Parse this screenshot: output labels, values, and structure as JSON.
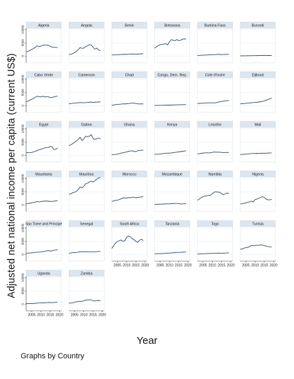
{
  "chart_data": {
    "type": "line",
    "ylabel": "Adjusted net national income per capita (current US$)",
    "xlabel": "Year",
    "note": "Graphs by Country",
    "x": [
      2002,
      2003,
      2004,
      2005,
      2006,
      2007,
      2008,
      2009,
      2010,
      2011,
      2012,
      2013,
      2014,
      2015,
      2016,
      2017,
      2018,
      2019
    ],
    "xlim": [
      2002,
      2021
    ],
    "xticks": [
      "2005",
      "2010",
      "2015",
      "2020"
    ],
    "ylim": [
      -2500,
      10500
    ],
    "yticks": [
      "0",
      "5000",
      "10000"
    ],
    "series_color": "#2f4a6b",
    "panel_header_color": "#dde6ee",
    "series": [
      {
        "name": "Algeria",
        "values": [
          1600,
          1800,
          2100,
          2500,
          2900,
          3300,
          3900,
          3500,
          3800,
          4100,
          4200,
          4200,
          4100,
          3700,
          3400,
          3300,
          3300,
          3200
        ]
      },
      {
        "name": "Angola",
        "values": [
          600,
          700,
          900,
          1300,
          1800,
          2400,
          3200,
          2900,
          3000,
          3500,
          3900,
          4300,
          4200,
          3400,
          2600,
          3000,
          2300,
          2000
        ]
      },
      {
        "name": "Benin",
        "values": [
          400,
          450,
          480,
          500,
          550,
          600,
          650,
          650,
          650,
          700,
          700,
          750,
          800,
          700,
          750,
          800,
          850,
          900
        ]
      },
      {
        "name": "Botswana",
        "values": [
          3000,
          3500,
          4000,
          4300,
          4400,
          4500,
          4700,
          4200,
          5400,
          6200,
          6000,
          5800,
          6200,
          5900,
          6000,
          6300,
          6500,
          6400
        ]
      },
      {
        "name": "Burkina Faso",
        "values": [
          250,
          280,
          320,
          350,
          380,
          420,
          480,
          480,
          500,
          550,
          600,
          650,
          650,
          550,
          600,
          620,
          650,
          700
        ]
      },
      {
        "name": "Burundi",
        "values": [
          100,
          100,
          110,
          120,
          130,
          140,
          160,
          170,
          190,
          200,
          220,
          230,
          250,
          260,
          240,
          230,
          230,
          220
        ]
      },
      {
        "name": "Cabo Verde",
        "values": [
          1500,
          1700,
          2100,
          2400,
          2800,
          3200,
          3600,
          3400,
          3300,
          3600,
          3300,
          3400,
          3400,
          3000,
          3100,
          3300,
          3500,
          3600
        ]
      },
      {
        "name": "Cameroon",
        "values": [
          700,
          800,
          900,
          950,
          1000,
          1100,
          1200,
          1150,
          1100,
          1200,
          1200,
          1300,
          1400,
          1250,
          1300,
          1350,
          1400,
          1450
        ]
      },
      {
        "name": "Chad",
        "values": [
          200,
          250,
          400,
          500,
          550,
          600,
          700,
          650,
          750,
          800,
          900,
          950,
          1000,
          800,
          700,
          650,
          700,
          650
        ]
      },
      {
        "name": "Congo, Dem. Rep.",
        "values": [
          100,
          110,
          120,
          140,
          160,
          180,
          210,
          200,
          230,
          260,
          290,
          320,
          350,
          370,
          380,
          390,
          420,
          450
        ]
      },
      {
        "name": "Cote d'Ivoire",
        "values": [
          800,
          850,
          900,
          950,
          950,
          1000,
          1100,
          1100,
          1100,
          1050,
          1150,
          1300,
          1500,
          1550,
          1700,
          1800,
          1900,
          1950
        ]
      },
      {
        "name": "Djibouti",
        "values": [
          700,
          750,
          800,
          900,
          950,
          1000,
          1100,
          1200,
          1250,
          1300,
          1400,
          1500,
          1600,
          1800,
          2100,
          2300,
          2600,
          2900
        ]
      },
      {
        "name": "Egypt",
        "values": [
          1100,
          1000,
          950,
          1100,
          1300,
          1500,
          1800,
          2100,
          2300,
          2500,
          2800,
          2900,
          3000,
          3300,
          3200,
          2200,
          2300,
          2800
        ]
      },
      {
        "name": "Gabon",
        "values": [
          3600,
          4000,
          4400,
          4900,
          5400,
          6000,
          6800,
          5600,
          6200,
          7200,
          7000,
          7200,
          7800,
          6400,
          6000,
          6200,
          6500,
          6200
        ]
      },
      {
        "name": "Ghana",
        "values": [
          250,
          300,
          350,
          450,
          600,
          800,
          1000,
          1100,
          1300,
          1500,
          1600,
          1700,
          1500,
          1400,
          1700,
          1800,
          1900,
          1950
        ]
      },
      {
        "name": "Kenya",
        "values": [
          400,
          420,
          450,
          500,
          600,
          700,
          800,
          800,
          850,
          900,
          1000,
          1100,
          1200,
          1300,
          1400,
          1500,
          1600,
          1700
        ]
      },
      {
        "name": "Lesotho",
        "values": [
          500,
          600,
          750,
          850,
          900,
          950,
          900,
          950,
          1100,
          1250,
          1200,
          1150,
          1200,
          1100,
          1000,
          1050,
          1100,
          1050
        ]
      },
      {
        "name": "Mali",
        "values": [
          300,
          350,
          400,
          450,
          500,
          600,
          700,
          700,
          700,
          750,
          700,
          750,
          800,
          750,
          800,
          850,
          900,
          900
        ]
      },
      {
        "name": "Mauritania",
        "values": [
          500,
          550,
          650,
          750,
          1000,
          1100,
          1300,
          1100,
          1250,
          1400,
          1400,
          1500,
          1400,
          1300,
          1350,
          1400,
          1500,
          1550
        ]
      },
      {
        "name": "Mauritius",
        "values": [
          4000,
          4200,
          4600,
          4800,
          5100,
          5800,
          6800,
          6400,
          7000,
          8000,
          8200,
          8600,
          9000,
          8600,
          9100,
          9700,
          10200,
          10300
        ]
      },
      {
        "name": "Morocco",
        "values": [
          1300,
          1500,
          1700,
          1800,
          2000,
          2300,
          2700,
          2600,
          2600,
          2800,
          2700,
          2900,
          2900,
          2700,
          2800,
          2900,
          3000,
          3100
        ]
      },
      {
        "name": "Mozambique",
        "values": [
          200,
          220,
          260,
          300,
          320,
          360,
          420,
          420,
          400,
          480,
          520,
          560,
          580,
          540,
          380,
          400,
          440,
          460
        ]
      },
      {
        "name": "Namibia",
        "values": [
          1800,
          2200,
          2800,
          3100,
          3300,
          3500,
          3600,
          3600,
          4200,
          4800,
          5000,
          4800,
          4800,
          4300,
          3800,
          4200,
          4500,
          4300
        ]
      },
      {
        "name": "Nigeria",
        "values": [
          400,
          450,
          600,
          750,
          1000,
          1200,
          1400,
          1100,
          2000,
          2200,
          2500,
          2800,
          3100,
          2800,
          2200,
          1900,
          1900,
          2100
        ]
      },
      {
        "name": "Sao Tome and Principe",
        "values": [
          500,
          550,
          600,
          650,
          700,
          800,
          900,
          900,
          950,
          1100,
          1200,
          1400,
          1500,
          1300,
          1400,
          1600,
          1700,
          1800
        ]
      },
      {
        "name": "Senegal",
        "values": [
          500,
          600,
          700,
          750,
          800,
          900,
          1100,
          1000,
          1000,
          1050,
          1000,
          1050,
          1050,
          950,
          1000,
          1100,
          1150,
          1200
        ]
      },
      {
        "name": "South Africa",
        "values": [
          2300,
          3300,
          4300,
          4900,
          5200,
          5500,
          5000,
          5200,
          6500,
          7000,
          6700,
          6000,
          5600,
          5000,
          4600,
          5400,
          5800,
          5300
        ]
      },
      {
        "name": "Tanzania",
        "values": [
          300,
          320,
          350,
          380,
          390,
          430,
          500,
          520,
          560,
          600,
          650,
          750,
          800,
          800,
          830,
          880,
          920,
          950
        ]
      },
      {
        "name": "Togo",
        "values": [
          250,
          270,
          300,
          320,
          340,
          380,
          450,
          450,
          440,
          480,
          480,
          520,
          540,
          500,
          520,
          560,
          600,
          620
        ]
      },
      {
        "name": "Tunisia",
        "values": [
          2000,
          2100,
          2400,
          2600,
          2700,
          3000,
          3400,
          3300,
          3400,
          3500,
          3500,
          3600,
          3600,
          3300,
          3200,
          3000,
          2900,
          2950
        ]
      },
      {
        "name": "Uganda",
        "values": [
          200,
          210,
          220,
          250,
          290,
          330,
          420,
          430,
          470,
          470,
          520,
          560,
          630,
          620,
          600,
          620,
          660,
          690
        ]
      },
      {
        "name": "Zambia",
        "values": [
          350,
          400,
          500,
          700,
          900,
          1000,
          1100,
          1000,
          1300,
          1500,
          1600,
          1650,
          1600,
          1300,
          1150,
          1350,
          1400,
          1250
        ]
      }
    ]
  }
}
